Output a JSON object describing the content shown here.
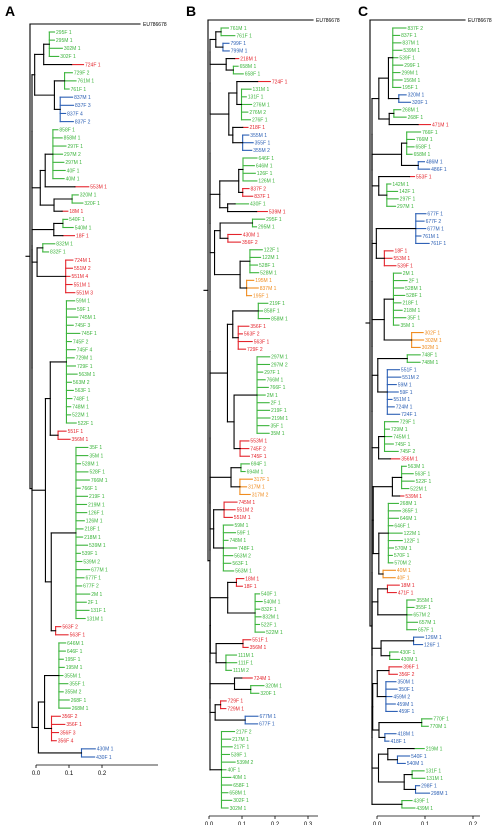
{
  "colors": {
    "black": "#000000",
    "red": "#e4242c",
    "green": "#3cb43c",
    "blue": "#2b5fb4",
    "orange": "#f08c1e"
  },
  "panels": [
    {
      "label": "A",
      "root": "EU786678",
      "axis_ticks": [
        "0.0",
        "0.1",
        "0.2"
      ],
      "groups": [
        {
          "color": "green",
          "leaves": [
            "295F 1",
            "295M 1",
            "302M 1",
            "302F 1"
          ]
        },
        {
          "color": "red",
          "leaves": [
            "724F 1"
          ]
        },
        {
          "color": "green",
          "leaves": [
            "729F 2",
            "761M 1",
            "761F 1"
          ]
        },
        {
          "color": "blue",
          "leaves": [
            "837M 1",
            "837F 3",
            "837F 4",
            "837F 2"
          ]
        },
        {
          "color": "green",
          "leaves": [
            "858F 1",
            "858M 1",
            "297F 1",
            "297M 2",
            "297M 1",
            "40F 1",
            "40M 1"
          ]
        },
        {
          "color": "red",
          "leaves": [
            "553M 1"
          ]
        },
        {
          "color": "green",
          "leaves": [
            "320M 1",
            "320F 1"
          ]
        },
        {
          "color": "red",
          "leaves": [
            "18M 1"
          ]
        },
        {
          "color": "green",
          "leaves": [
            "540F 1",
            "540M 1"
          ]
        },
        {
          "color": "red",
          "leaves": [
            "18F 1"
          ]
        },
        {
          "color": "green",
          "leaves": [
            "832M 1",
            "832F 1"
          ]
        },
        {
          "color": "red",
          "leaves": [
            "724M 1",
            "551M 2",
            "551M 4",
            "551M 1",
            "551M 3"
          ]
        },
        {
          "color": "green",
          "leaves": [
            "59M 1",
            "59F 1",
            "745M 1",
            "745F 3",
            "745F 1",
            "745F 2",
            "745F 4",
            "729M 1",
            "729F 1",
            "563M 1",
            "563M 2",
            "563F 1",
            "748F 1",
            "748M 1",
            "522M 1",
            "522F 1"
          ]
        },
        {
          "color": "red",
          "leaves": [
            "551F 1",
            "356M 1"
          ]
        },
        {
          "color": "green",
          "leaves": [
            "35F 1",
            "35M 1",
            "528M 1",
            "528F 1",
            "766M 1",
            "766F 1",
            "219F 1",
            "219M 1",
            "126F 1",
            "126M 1",
            "218F 1",
            "218M 1",
            "539M 1",
            "539F 1",
            "539M 2",
            "677M 1",
            "677F 1",
            "677F 2",
            "2M 1",
            "2F 1",
            "131F 1",
            "131M 1"
          ]
        },
        {
          "color": "red",
          "leaves": [
            "563F 2",
            "563F 1"
          ]
        },
        {
          "color": "green",
          "leaves": [
            "646M 1",
            "646F 1",
            "195F 1",
            "195M 1",
            "355M 1",
            "355F 1",
            "355M 2",
            "268F 1",
            "268M 1"
          ]
        },
        {
          "color": "red",
          "leaves": [
            "356F 2",
            "356F 1",
            "356F 3",
            "356F 4"
          ]
        },
        {
          "color": "blue",
          "leaves": [
            "430M 1",
            "430F 1"
          ]
        }
      ]
    },
    {
      "label": "B",
      "root": "EU786678",
      "axis_ticks": [
        "0.0",
        "0.1",
        "0.2",
        "0.3"
      ],
      "groups": [
        {
          "color": "green",
          "leaves": [
            "761M 1",
            "761F 1"
          ]
        },
        {
          "color": "blue",
          "leaves": [
            "799F 1",
            "799M 1"
          ]
        },
        {
          "color": "red",
          "leaves": [
            "218M 1"
          ]
        },
        {
          "color": "green",
          "leaves": [
            "658M 1",
            "658F 1"
          ]
        },
        {
          "color": "red",
          "leaves": [
            "724F 1"
          ]
        },
        {
          "color": "green",
          "leaves": [
            "131M 1",
            "131F 1",
            "276M 1",
            "276M 2",
            "276F 1"
          ]
        },
        {
          "color": "red",
          "leaves": [
            "218F 1"
          ]
        },
        {
          "color": "blue",
          "leaves": [
            "355M 1",
            "355F 1",
            "355M 2"
          ]
        },
        {
          "color": "green",
          "leaves": [
            "646F 1",
            "646M 1",
            "126F 1",
            "126M 1"
          ]
        },
        {
          "color": "red",
          "leaves": [
            "837F 2",
            "837F 1"
          ]
        },
        {
          "color": "green",
          "leaves": [
            "430F 1"
          ]
        },
        {
          "color": "red",
          "leaves": [
            "539M 1"
          ]
        },
        {
          "color": "green",
          "leaves": [
            "295F 1",
            "295M 1"
          ]
        },
        {
          "color": "red",
          "leaves": [
            "430M 1",
            "356F 2"
          ]
        },
        {
          "color": "green",
          "leaves": [
            "122F 1",
            "122M 1",
            "528F 1",
            "528M 1"
          ]
        },
        {
          "color": "orange",
          "leaves": [
            "195M 1",
            "837M 1",
            "195F 1"
          ]
        },
        {
          "color": "green",
          "leaves": [
            "219F 1",
            "858F 1",
            "858M 1"
          ]
        },
        {
          "color": "red",
          "leaves": [
            "356F 1",
            "563F 2",
            "563F 1",
            "729F 2"
          ]
        },
        {
          "color": "green",
          "leaves": [
            "297M 1",
            "297M 2",
            "297F 1",
            "766M 1",
            "766F 1",
            "2M 1",
            "2F 1",
            "219F 1",
            "219M 1",
            "35F 1",
            "35M 1"
          ]
        },
        {
          "color": "red",
          "leaves": [
            "553M 1",
            "745F 2",
            "745F 1"
          ]
        },
        {
          "color": "green",
          "leaves": [
            "694F 1",
            "694M 1"
          ]
        },
        {
          "color": "orange",
          "leaves": [
            "317F 1",
            "317M 1",
            "317M 2"
          ]
        },
        {
          "color": "red",
          "leaves": [
            "745M 1",
            "551M 2",
            "551M 1"
          ]
        },
        {
          "color": "green",
          "leaves": [
            "59M 1",
            "59F 1",
            "748M 1",
            "748F 1",
            "563M 2",
            "563F 1",
            "563M 1"
          ]
        },
        {
          "color": "red",
          "leaves": [
            "18M 1",
            "18F 1"
          ]
        },
        {
          "color": "green",
          "leaves": [
            "540F 1",
            "540M 1",
            "832F 1",
            "832M 1",
            "522F 1",
            "522M 1"
          ]
        },
        {
          "color": "red",
          "leaves": [
            "551F 1",
            "356M 1"
          ]
        },
        {
          "color": "green",
          "leaves": [
            "111M 1",
            "111F 1",
            "111M 2"
          ]
        },
        {
          "color": "red",
          "leaves": [
            "724M 1"
          ]
        },
        {
          "color": "green",
          "leaves": [
            "320M 1",
            "320F 1"
          ]
        },
        {
          "color": "red",
          "leaves": [
            "729F 1",
            "729M 1"
          ]
        },
        {
          "color": "blue",
          "leaves": [
            "677M 1",
            "677F 1"
          ]
        },
        {
          "color": "green",
          "leaves": [
            "217F 2",
            "217M 1",
            "217F 1",
            "539F 1",
            "539M 2",
            "40F 1",
            "40M 1",
            "658F 1",
            "658M 1",
            "302F 1",
            "302M 1"
          ]
        }
      ]
    },
    {
      "label": "C",
      "root": "EU786678",
      "axis_ticks": [
        "0.0",
        "0.1",
        "0.2"
      ],
      "groups": [
        {
          "color": "green",
          "leaves": [
            "837F 2",
            "837F 1",
            "837M 1",
            "539M 1",
            "539F 1",
            "299F 1",
            "299M 1",
            "156M 1",
            "195F 1"
          ]
        },
        {
          "color": "blue",
          "leaves": [
            "320M 1",
            "320F 1"
          ]
        },
        {
          "color": "green",
          "leaves": [
            "268M 1",
            "268F 1"
          ]
        },
        {
          "color": "red",
          "leaves": [
            "471M 1"
          ]
        },
        {
          "color": "green",
          "leaves": [
            "766F 1",
            "766M 1",
            "658F 1",
            "658M 1"
          ]
        },
        {
          "color": "blue",
          "leaves": [
            "486M 1",
            "486F 1"
          ]
        },
        {
          "color": "red",
          "leaves": [
            "553F 1"
          ]
        },
        {
          "color": "green",
          "leaves": [
            "142M 1",
            "142F 1",
            "297F 1",
            "297M 1"
          ]
        },
        {
          "color": "blue",
          "leaves": [
            "677F 1",
            "677F 2",
            "677M 1",
            "761M 1",
            "761F 1"
          ]
        },
        {
          "color": "red",
          "leaves": [
            "18F 1",
            "553M 1",
            "539F 1"
          ]
        },
        {
          "color": "green",
          "leaves": [
            "2M 1",
            "2F 1",
            "528M 1",
            "528F 1",
            "218F 1",
            "218M 1",
            "35F 1",
            "35M 1"
          ]
        },
        {
          "color": "orange",
          "leaves": [
            "302F 1",
            "302M 1",
            "302M 1"
          ]
        },
        {
          "color": "green",
          "leaves": [
            "748F 1",
            "748M 1"
          ]
        },
        {
          "color": "blue",
          "leaves": [
            "551F 1",
            "551M 2",
            "59M 1",
            "59F 1",
            "551M 1",
            "724M 1",
            "724F 1"
          ]
        },
        {
          "color": "green",
          "leaves": [
            "729F 1",
            "729M 1",
            "745M 1",
            "745F 1",
            "745F 2"
          ]
        },
        {
          "color": "red",
          "leaves": [
            "356M 1"
          ]
        },
        {
          "color": "green",
          "leaves": [
            "563M 1",
            "563F 1",
            "522F 1",
            "522M 1"
          ]
        },
        {
          "color": "red",
          "leaves": [
            "539M 1"
          ]
        },
        {
          "color": "green",
          "leaves": [
            "268M 1",
            "365F 1",
            "646M 1",
            "646F 1",
            "122M 1",
            "122F 1",
            "570M 1",
            "570F 1",
            "570M 2"
          ]
        },
        {
          "color": "orange",
          "leaves": [
            "40M 1",
            "40F 1"
          ]
        },
        {
          "color": "red",
          "leaves": [
            "18M 1",
            "471F 1"
          ]
        },
        {
          "color": "green",
          "leaves": [
            "355M 1",
            "355F 1",
            "657M 2",
            "657M 1",
            "657F 1"
          ]
        },
        {
          "color": "blue",
          "leaves": [
            "126M 1",
            "126F 1"
          ]
        },
        {
          "color": "green",
          "leaves": [
            "430F 1",
            "430M 1"
          ]
        },
        {
          "color": "red",
          "leaves": [
            "396F 1",
            "356F 2"
          ]
        },
        {
          "color": "blue",
          "leaves": [
            "350M 1",
            "350F 1",
            "459M 2",
            "459M 1",
            "459F 1"
          ]
        },
        {
          "color": "green",
          "leaves": [
            "770F 1",
            "770M 1"
          ]
        },
        {
          "color": "blue",
          "leaves": [
            "418M 1",
            "418F 1"
          ]
        },
        {
          "color": "green",
          "leaves": [
            "219M 1"
          ]
        },
        {
          "color": "blue",
          "leaves": [
            "540F 1",
            "540M 1"
          ]
        },
        {
          "color": "green",
          "leaves": [
            "131F 1",
            "131M 1"
          ]
        },
        {
          "color": "blue",
          "leaves": [
            "298F 1",
            "298M 1"
          ]
        },
        {
          "color": "green",
          "leaves": [
            "439F 1",
            "439M 1"
          ]
        }
      ]
    }
  ]
}
